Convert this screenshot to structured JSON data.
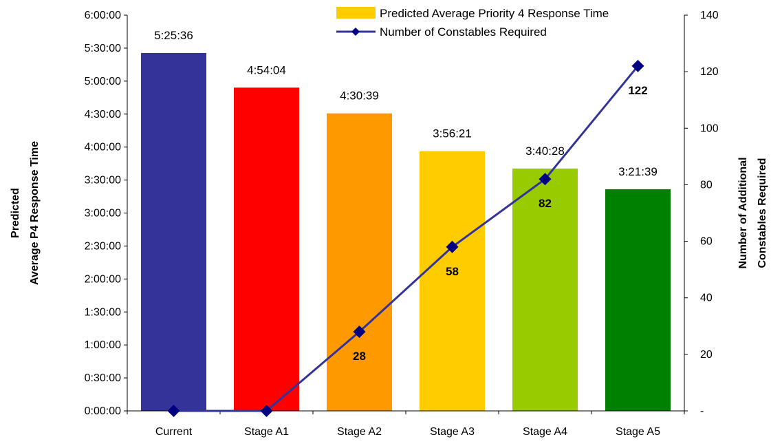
{
  "chart_data": {
    "type": "bar",
    "categories": [
      "Current",
      "Stage A1",
      "Stage A2",
      "Stage A3",
      "Stage A4",
      "Stage A5"
    ],
    "series": [
      {
        "name": "Predicted Average Priority 4 Response Time",
        "type": "bar",
        "axis": "left",
        "values": [
          "5:25:36",
          "4:54:04",
          "4:30:39",
          "3:56:21",
          "3:40:28",
          "3:21:39"
        ],
        "value_labels": [
          "5:25:36",
          "4:54:04",
          "4:30:39",
          "3:56:21",
          "3:40:28",
          "3:21:39"
        ],
        "colors": [
          "#333399",
          "#ff0000",
          "#ff9900",
          "#ffcc00",
          "#99cc00",
          "#008000"
        ]
      },
      {
        "name": "Number of Constables Required",
        "type": "line",
        "axis": "right",
        "values": [
          0,
          0,
          28,
          58,
          82,
          122
        ],
        "value_labels": [
          "",
          "",
          "28",
          "58",
          "82",
          "122"
        ],
        "color": "#333399",
        "marker": "diamond",
        "marker_color": "#000080"
      }
    ],
    "y_left": {
      "label_lines": [
        "Predicted",
        "Average P4 Response Time"
      ],
      "ylim": [
        "0:00:00",
        "6:00:00"
      ],
      "ticks": [
        "0:00:00",
        "0:30:00",
        "1:00:00",
        "1:30:00",
        "2:00:00",
        "2:30:00",
        "3:00:00",
        "3:30:00",
        "4:00:00",
        "4:30:00",
        "5:00:00",
        "5:30:00",
        "6:00:00"
      ]
    },
    "y_right": {
      "label_lines": [
        "Number of Additional",
        "Constables Required"
      ],
      "ylim": [
        0,
        140
      ],
      "ticks": [
        "-",
        "20",
        "40",
        "60",
        "80",
        "100",
        "120",
        "140"
      ]
    },
    "legend": {
      "placement": "top-right",
      "entries": [
        "Predicted Average Priority 4 Response Time",
        "Number of Constables Required"
      ]
    },
    "grid": false
  }
}
